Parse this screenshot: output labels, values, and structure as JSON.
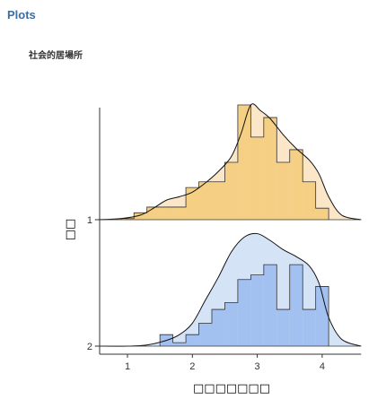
{
  "header": {
    "section_title": "Plots"
  },
  "chart_data": {
    "type": "histogram-density",
    "title": "社会的居場所",
    "xlabel": "□□□□□□□",
    "ylabel": "□□",
    "xlim": [
      0.5,
      4.6
    ],
    "x_ticks": [
      1,
      2,
      3,
      4
    ],
    "y_categories": [
      "1",
      "2"
    ],
    "grid": false,
    "legend": "none",
    "series": [
      {
        "name": "1",
        "fill_hist": "#f4cf84",
        "fill_density": "#fbe7c8",
        "bin_edges": [
          0.9,
          1.1,
          1.3,
          1.5,
          1.7,
          1.9,
          2.1,
          2.3,
          2.5,
          2.7,
          2.9,
          3.1,
          3.3,
          3.5,
          3.7,
          3.9,
          4.1
        ],
        "hist_heights": [
          0.01,
          0.06,
          0.11,
          0.11,
          0.11,
          0.28,
          0.33,
          0.33,
          0.5,
          1.0,
          0.72,
          0.89,
          0.5,
          0.61,
          0.33,
          0.1
        ],
        "density_x": [
          0.5,
          0.9,
          1.2,
          1.4,
          1.6,
          1.8,
          2.0,
          2.2,
          2.4,
          2.6,
          2.75,
          2.9,
          3.05,
          3.2,
          3.4,
          3.6,
          3.8,
          3.95,
          4.1,
          4.3,
          4.6
        ],
        "density_y": [
          0.0,
          0.01,
          0.04,
          0.1,
          0.17,
          0.2,
          0.24,
          0.32,
          0.42,
          0.55,
          0.75,
          1.0,
          0.95,
          0.88,
          0.74,
          0.62,
          0.52,
          0.4,
          0.2,
          0.04,
          0.0
        ]
      },
      {
        "name": "2",
        "fill_hist": "#a3c1f0",
        "fill_density": "#d5e3f7",
        "bin_edges": [
          1.5,
          1.7,
          1.9,
          2.1,
          2.3,
          2.5,
          2.7,
          2.9,
          3.1,
          3.3,
          3.5,
          3.7,
          3.9,
          4.1
        ],
        "hist_heights": [
          0.1,
          0.03,
          0.1,
          0.2,
          0.32,
          0.38,
          0.58,
          0.62,
          0.71,
          0.32,
          0.71,
          0.32,
          0.52
        ],
        "density_x": [
          0.5,
          1.0,
          1.3,
          1.6,
          1.8,
          2.0,
          2.2,
          2.4,
          2.6,
          2.8,
          3.0,
          3.2,
          3.4,
          3.6,
          3.8,
          3.95,
          4.1,
          4.3,
          4.6
        ],
        "density_y": [
          0.0,
          0.0,
          0.01,
          0.05,
          0.1,
          0.2,
          0.4,
          0.6,
          0.82,
          0.95,
          0.98,
          0.92,
          0.84,
          0.78,
          0.7,
          0.55,
          0.25,
          0.06,
          0.0
        ]
      }
    ]
  }
}
